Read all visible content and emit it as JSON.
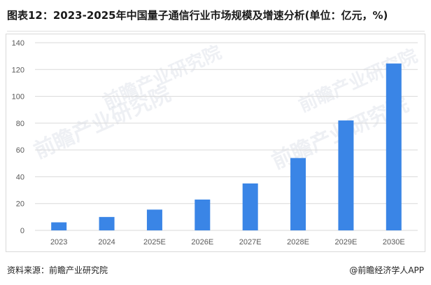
{
  "title": "图表12：2023-2025年中国量子通信行业市场规模及增速分析(单位：亿元，%)",
  "watermark": "前瞻产业研究院",
  "footer": {
    "source": "资料来源：前瞻产业研究院",
    "credit": "@前瞻经济学人APP"
  },
  "colors": {
    "bar": "#3a85e6",
    "grid": "#d9d9d9",
    "tick_text": "#595959"
  },
  "chart_data": {
    "type": "bar",
    "categories": [
      "2023",
      "2024",
      "2025E",
      "2026E",
      "2027E",
      "2028E",
      "2029E",
      "2030E"
    ],
    "values": [
      6,
      10,
      15.5,
      23,
      35,
      54,
      82,
      124.5
    ],
    "ylim": [
      0,
      140
    ],
    "yticks": [
      0,
      20,
      40,
      60,
      80,
      100,
      120,
      140
    ],
    "title": "",
    "xlabel": "",
    "ylabel": "",
    "grid": true
  }
}
